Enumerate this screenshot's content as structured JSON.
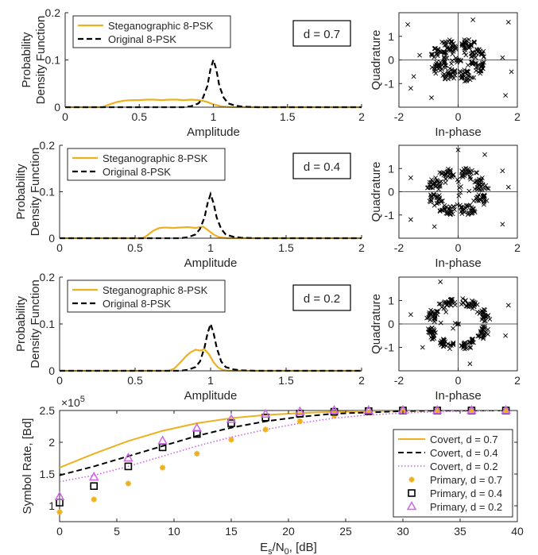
{
  "colors": {
    "orange": "#EDB120",
    "black": "#000000",
    "purple": "#CC66E6",
    "axis": "#262626"
  },
  "chart_data": [
    {
      "type": "line",
      "panel": "pdf",
      "annotation": "d  = 0.7",
      "xlabel": "Amplitude",
      "ylabel_lines": [
        "Probability",
        "Density Function"
      ],
      "xlim": [
        0,
        2
      ],
      "ylim": [
        0,
        0.2
      ],
      "xticks": [
        0,
        0.5,
        1,
        1.5,
        2
      ],
      "xticklabels": [
        "0",
        "0.5",
        "1",
        "1.5",
        "2"
      ],
      "yticks": [
        0,
        0.1,
        0.2
      ],
      "yticklabels": [
        "0",
        "0.1",
        "0.2"
      ],
      "legend_placement": "top-left",
      "series": [
        {
          "name": "Steganographic 8-PSK",
          "color": "orange",
          "style": "solid",
          "x": [
            0,
            0.25,
            0.3,
            0.35,
            0.4,
            0.45,
            0.5,
            0.55,
            0.6,
            0.65,
            0.7,
            0.75,
            0.8,
            0.85,
            0.9,
            0.95,
            1.0,
            1.05,
            1.1,
            1.15,
            1.2,
            2
          ],
          "y": [
            0,
            0,
            0.006,
            0.011,
            0.014,
            0.015,
            0.015,
            0.016,
            0.016,
            0.015,
            0.016,
            0.016,
            0.015,
            0.016,
            0.015,
            0.012,
            0.006,
            0.002,
            0.0005,
            0,
            0,
            0
          ]
        },
        {
          "name": "Original 8-PSK",
          "color": "black",
          "style": "dashed",
          "x": [
            0,
            0.8,
            0.85,
            0.9,
            0.93,
            0.96,
            0.98,
            1.0,
            1.02,
            1.04,
            1.07,
            1.1,
            1.15,
            1.2,
            1.3,
            2
          ],
          "y": [
            0,
            0,
            0.002,
            0.008,
            0.02,
            0.045,
            0.08,
            0.1,
            0.08,
            0.045,
            0.02,
            0.008,
            0.003,
            0.001,
            0,
            0
          ]
        }
      ]
    },
    {
      "type": "scatter",
      "panel": "constellation",
      "xlabel": "In-phase",
      "ylabel": "Quadrature",
      "xlim": [
        -2,
        2
      ],
      "ylim": [
        -2,
        2
      ],
      "xticks": [
        -2,
        0,
        2
      ],
      "xticklabels": [
        "-2",
        "0",
        "2"
      ],
      "yticks": [
        -1,
        0,
        1
      ],
      "yticklabels": [
        "-1",
        "0",
        "1"
      ],
      "marker": "x",
      "cluster_radius": 0.7,
      "spread": 0.25,
      "outliers": [
        [
          -1.7,
          1.5
        ],
        [
          -1.6,
          -1.2
        ],
        [
          1.7,
          1.6
        ],
        [
          1.6,
          -1.5
        ],
        [
          -1.3,
          0.2
        ],
        [
          1.5,
          0.1
        ],
        [
          -0.9,
          -1.6
        ],
        [
          0.5,
          1.7
        ],
        [
          -1.5,
          -0.7
        ],
        [
          1.8,
          -0.5
        ]
      ]
    },
    {
      "type": "line",
      "panel": "pdf",
      "annotation": "d  = 0.4",
      "xlabel": "Amplitude",
      "ylabel_lines": [
        "Probability",
        "Density Function"
      ],
      "xlim": [
        0,
        2
      ],
      "ylim": [
        0,
        0.2
      ],
      "xticks": [
        0,
        0.5,
        1,
        1.5,
        2
      ],
      "xticklabels": [
        "0",
        "0.5",
        "1",
        "1.5",
        "2"
      ],
      "yticks": [
        0,
        0.1,
        0.2
      ],
      "yticklabels": [
        "0",
        "0.1",
        "0.2"
      ],
      "legend_placement": "top-left",
      "series": [
        {
          "name": "Steganographic 8-PSK",
          "color": "orange",
          "style": "solid",
          "x": [
            0,
            0.55,
            0.58,
            0.62,
            0.66,
            0.7,
            0.75,
            0.8,
            0.85,
            0.9,
            0.95,
            0.98,
            1.02,
            1.05,
            1.08,
            1.12,
            2
          ],
          "y": [
            0,
            0,
            0.006,
            0.016,
            0.022,
            0.023,
            0.022,
            0.023,
            0.024,
            0.022,
            0.025,
            0.018,
            0.008,
            0.003,
            0.001,
            0,
            0
          ]
        },
        {
          "name": "Original 8-PSK",
          "color": "black",
          "style": "dashed",
          "x": [
            0,
            0.8,
            0.85,
            0.9,
            0.93,
            0.96,
            0.98,
            1.0,
            1.02,
            1.04,
            1.07,
            1.1,
            1.15,
            1.2,
            1.3,
            2
          ],
          "y": [
            0,
            0,
            0.002,
            0.008,
            0.02,
            0.045,
            0.075,
            0.095,
            0.075,
            0.045,
            0.02,
            0.008,
            0.003,
            0.001,
            0,
            0
          ]
        }
      ]
    },
    {
      "type": "scatter",
      "panel": "constellation",
      "xlabel": "In-phase",
      "ylabel": "Quadrature",
      "xlim": [
        -2,
        2
      ],
      "ylim": [
        -2,
        2
      ],
      "xticks": [
        -2,
        0,
        2
      ],
      "xticklabels": [
        "-2",
        "0",
        "2"
      ],
      "yticks": [
        -1,
        0,
        1
      ],
      "yticklabels": [
        "-1",
        "0",
        "1"
      ],
      "marker": "x",
      "cluster_radius": 0.85,
      "spread": 0.2,
      "outliers": [
        [
          0.0,
          1.8
        ],
        [
          -1.6,
          -1.2
        ],
        [
          1.5,
          -1.4
        ],
        [
          -1.6,
          0.6
        ],
        [
          1.5,
          0.9
        ],
        [
          -0.8,
          -1.5
        ],
        [
          0.9,
          1.6
        ],
        [
          1.7,
          0.2
        ]
      ]
    },
    {
      "type": "line",
      "panel": "pdf",
      "annotation": "d  = 0.2",
      "xlabel": "Amplitude",
      "ylabel_lines": [
        "Probability",
        "Density Function"
      ],
      "xlim": [
        0,
        2
      ],
      "ylim": [
        0,
        0.2
      ],
      "xticks": [
        0,
        0.5,
        1,
        1.5,
        2
      ],
      "xticklabels": [
        "0",
        "0.5",
        "1",
        "1.5",
        "2"
      ],
      "yticks": [
        0,
        0.1,
        0.2
      ],
      "yticklabels": [
        "0",
        "0.1",
        "0.2"
      ],
      "legend_placement": "top-left",
      "series": [
        {
          "name": "Steganographic 8-PSK",
          "color": "orange",
          "style": "solid",
          "x": [
            0,
            0.72,
            0.76,
            0.8,
            0.84,
            0.87,
            0.9,
            0.93,
            0.96,
            0.99,
            1.02,
            1.05,
            1.08,
            1.12,
            2
          ],
          "y": [
            0,
            0,
            0.005,
            0.018,
            0.032,
            0.04,
            0.045,
            0.043,
            0.046,
            0.035,
            0.018,
            0.007,
            0.002,
            0,
            0
          ]
        },
        {
          "name": "Original 8-PSK",
          "color": "black",
          "style": "dashed",
          "x": [
            0,
            0.8,
            0.85,
            0.9,
            0.93,
            0.96,
            0.98,
            1.0,
            1.02,
            1.04,
            1.07,
            1.1,
            1.15,
            1.2,
            1.3,
            2
          ],
          "y": [
            0,
            0,
            0.002,
            0.008,
            0.02,
            0.05,
            0.08,
            0.1,
            0.08,
            0.05,
            0.02,
            0.008,
            0.003,
            0.001,
            0,
            0
          ]
        }
      ]
    },
    {
      "type": "scatter",
      "panel": "constellation",
      "xlabel": "In-phase",
      "ylabel": "Quadrature",
      "xlim": [
        -2,
        2
      ],
      "ylim": [
        -2,
        2
      ],
      "xticks": [
        -2,
        0,
        2
      ],
      "xticklabels": [
        "-2",
        "0",
        "2"
      ],
      "yticks": [
        -1,
        0,
        1
      ],
      "yticklabels": [
        "-1",
        "0",
        "1"
      ],
      "marker": "x",
      "cluster_radius": 0.95,
      "spread": 0.15,
      "outliers": [
        [
          -0.6,
          1.8
        ],
        [
          1.6,
          -0.5
        ],
        [
          -1.6,
          0.4
        ],
        [
          0.4,
          -1.7
        ],
        [
          1.7,
          0.8
        ],
        [
          -1.2,
          -1.0
        ]
      ]
    },
    {
      "type": "line",
      "panel": "rate",
      "xlabel": "E_s/N_0, [dB]",
      "xlabel_parts": {
        "e": "E",
        "s": "s",
        "slash": "/N",
        "zero": "0",
        "unit": ", [dB]"
      },
      "ylabel": "Symbol Rate, [Bd]",
      "exponent_label": {
        "base": "×10",
        "power": "5"
      },
      "xlim": [
        0,
        40
      ],
      "ylim": [
        0.75,
        2.5
      ],
      "xticks": [
        0,
        5,
        10,
        15,
        20,
        25,
        30,
        35,
        40
      ],
      "xticklabels": [
        "0",
        "5",
        "10",
        "15",
        "20",
        "25",
        "30",
        "35",
        "40"
      ],
      "yticks": [
        1,
        1.5,
        2,
        2.5
      ],
      "yticklabels": [
        "1",
        "1.5",
        "2",
        "2.5"
      ],
      "grid": false,
      "legend_placement": "bottom-right",
      "series": [
        {
          "name": "Covert, d = 0.7",
          "kind": "line",
          "color": "orange",
          "style": "solid",
          "x": [
            0,
            3,
            6,
            9,
            12,
            15,
            18,
            21,
            24,
            27,
            30,
            33,
            36,
            39
          ],
          "y": [
            1.6,
            1.82,
            2.02,
            2.18,
            2.3,
            2.38,
            2.43,
            2.46,
            2.48,
            2.49,
            2.495,
            2.5,
            2.5,
            2.5
          ]
        },
        {
          "name": "Covert, d = 0.4",
          "kind": "line",
          "color": "black",
          "style": "dashed",
          "x": [
            0,
            3,
            6,
            9,
            12,
            15,
            18,
            21,
            24,
            27,
            30,
            33,
            36,
            39
          ],
          "y": [
            1.48,
            1.62,
            1.78,
            1.94,
            2.1,
            2.23,
            2.33,
            2.4,
            2.45,
            2.47,
            2.49,
            2.5,
            2.5,
            2.5
          ]
        },
        {
          "name": "Covert, d = 0.2",
          "kind": "line",
          "color": "purple",
          "style": "dotted",
          "x": [
            0,
            3,
            6,
            9,
            12,
            15,
            18,
            21,
            24,
            27,
            30,
            33,
            36,
            39
          ],
          "y": [
            1.38,
            1.48,
            1.62,
            1.78,
            1.94,
            2.08,
            2.2,
            2.3,
            2.38,
            2.43,
            2.46,
            2.48,
            2.49,
            2.5
          ]
        },
        {
          "name": "Primary, d = 0.7",
          "kind": "marker",
          "marker": "asterisk",
          "color": "orange",
          "x": [
            0,
            3,
            6,
            9,
            12,
            15,
            18,
            21,
            24,
            27,
            30,
            33,
            36,
            39
          ],
          "y": [
            0.9,
            1.1,
            1.35,
            1.6,
            1.82,
            2.04,
            2.2,
            2.33,
            2.42,
            2.47,
            2.49,
            2.5,
            2.5,
            2.5
          ]
        },
        {
          "name": "Primary, d = 0.4",
          "kind": "marker",
          "marker": "square",
          "color": "black",
          "x": [
            0,
            3,
            6,
            9,
            12,
            15,
            18,
            21,
            24,
            27,
            30,
            33,
            36,
            39
          ],
          "y": [
            1.05,
            1.31,
            1.62,
            1.92,
            2.13,
            2.3,
            2.39,
            2.45,
            2.48,
            2.49,
            2.5,
            2.5,
            2.5,
            2.5
          ]
        },
        {
          "name": "Primary, d = 0.2",
          "kind": "marker",
          "marker": "triangle",
          "color": "purple",
          "x": [
            0,
            3,
            6,
            9,
            12,
            15,
            18,
            21,
            24,
            27,
            30,
            33,
            36,
            39
          ],
          "y": [
            1.14,
            1.45,
            1.75,
            2.02,
            2.22,
            2.36,
            2.44,
            2.48,
            2.5,
            2.5,
            2.5,
            2.5,
            2.5,
            2.5
          ]
        }
      ]
    }
  ]
}
